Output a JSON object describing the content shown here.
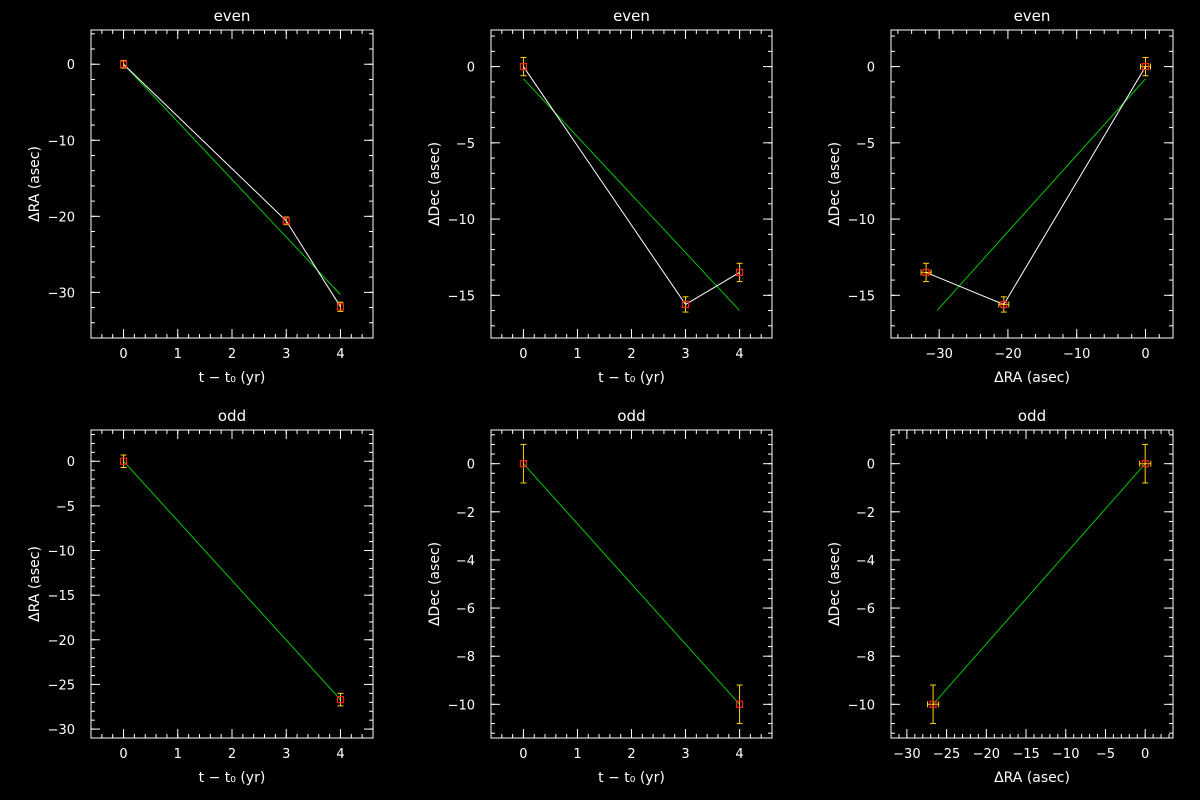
{
  "chart_data": [
    {
      "type": "line",
      "title": "even",
      "xlabel": "t − t₀ (yr)",
      "ylabel": "ΔRA (asec)",
      "xlim": [
        -0.6,
        4.6
      ],
      "ylim": [
        -36,
        4.5
      ],
      "xticks": [
        0,
        1,
        2,
        3,
        4
      ],
      "yticks": [
        0,
        -10,
        -20,
        -30
      ],
      "points": [
        {
          "x": 0,
          "y": 0,
          "yerr": 0.5,
          "xerr": 0
        },
        {
          "x": 3,
          "y": -20.6,
          "yerr": 0.5,
          "xerr": 0
        },
        {
          "x": 4,
          "y": -31.9,
          "yerr": 0.6,
          "xerr": 0
        }
      ],
      "connect": true,
      "fit": [
        [
          0,
          0
        ],
        [
          4,
          -30.3
        ]
      ],
      "colors": {
        "data_line": "#ffffff",
        "fit_line": "#00c800",
        "marker": "#ff2020",
        "error_bar": "#ffd700"
      }
    },
    {
      "type": "line",
      "title": "even",
      "xlabel": "t − t₀ (yr)",
      "ylabel": "ΔDec (asec)",
      "xlim": [
        -0.6,
        4.6
      ],
      "ylim": [
        -17.8,
        2.4
      ],
      "xticks": [
        0,
        1,
        2,
        3,
        4
      ],
      "yticks": [
        0,
        -5,
        -10,
        -15
      ],
      "points": [
        {
          "x": 0,
          "y": 0,
          "yerr": 0.6,
          "xerr": 0
        },
        {
          "x": 3,
          "y": -15.6,
          "yerr": 0.5,
          "xerr": 0
        },
        {
          "x": 4,
          "y": -13.5,
          "yerr": 0.6,
          "xerr": 0
        }
      ],
      "connect": true,
      "fit": [
        [
          0,
          -0.8
        ],
        [
          4,
          -16.0
        ]
      ],
      "colors": {
        "data_line": "#ffffff",
        "fit_line": "#00c800",
        "marker": "#ff2020",
        "error_bar": "#ffd700"
      }
    },
    {
      "type": "line",
      "title": "even",
      "xlabel": "ΔRA (asec)",
      "ylabel": "ΔDec (asec)",
      "xlim": [
        -37,
        4
      ],
      "ylim": [
        -17.8,
        2.4
      ],
      "xticks": [
        -30,
        -20,
        -10,
        0
      ],
      "yticks": [
        0,
        -5,
        -10,
        -15
      ],
      "points": [
        {
          "x": 0,
          "y": 0,
          "yerr": 0.6,
          "xerr": 0.5
        },
        {
          "x": -20.6,
          "y": -15.6,
          "yerr": 0.5,
          "xerr": 0.5
        },
        {
          "x": -31.9,
          "y": -13.5,
          "yerr": 0.6,
          "xerr": 0.6
        }
      ],
      "connect": true,
      "fit": [
        [
          0,
          -0.8
        ],
        [
          -30.3,
          -16.0
        ]
      ],
      "colors": {
        "data_line": "#ffffff",
        "fit_line": "#00c800",
        "marker": "#ff2020",
        "error_bar": "#ffd700"
      }
    },
    {
      "type": "line",
      "title": "odd",
      "xlabel": "t − t₀ (yr)",
      "ylabel": "ΔRA (asec)",
      "xlim": [
        -0.6,
        4.6
      ],
      "ylim": [
        -31,
        3.5
      ],
      "xticks": [
        0,
        1,
        2,
        3,
        4
      ],
      "yticks": [
        0,
        -5,
        -10,
        -15,
        -20,
        -25,
        -30
      ],
      "points": [
        {
          "x": 0,
          "y": 0,
          "yerr": 0.7,
          "xerr": 0
        },
        {
          "x": 4,
          "y": -26.7,
          "yerr": 0.7,
          "xerr": 0
        }
      ],
      "connect": false,
      "fit": [
        [
          0,
          0
        ],
        [
          4,
          -26.7
        ]
      ],
      "colors": {
        "data_line": "#ffffff",
        "fit_line": "#00c800",
        "marker": "#ff2020",
        "error_bar": "#ffd700"
      }
    },
    {
      "type": "line",
      "title": "odd",
      "xlabel": "t − t₀ (yr)",
      "ylabel": "ΔDec (asec)",
      "xlim": [
        -0.6,
        4.6
      ],
      "ylim": [
        -11.4,
        1.4
      ],
      "xticks": [
        0,
        1,
        2,
        3,
        4
      ],
      "yticks": [
        0,
        -2,
        -4,
        -6,
        -8,
        -10
      ],
      "points": [
        {
          "x": 0,
          "y": 0,
          "yerr": 0.8,
          "xerr": 0
        },
        {
          "x": 4,
          "y": -10.0,
          "yerr": 0.8,
          "xerr": 0
        }
      ],
      "connect": false,
      "fit": [
        [
          0,
          0
        ],
        [
          4,
          -10.0
        ]
      ],
      "colors": {
        "data_line": "#ffffff",
        "fit_line": "#00c800",
        "marker": "#ff2020",
        "error_bar": "#ffd700"
      }
    },
    {
      "type": "line",
      "title": "odd",
      "xlabel": "ΔRA (asec)",
      "ylabel": "ΔDec (asec)",
      "xlim": [
        -32,
        3.5
      ],
      "ylim": [
        -11.4,
        1.4
      ],
      "xticks": [
        -30,
        -25,
        -20,
        -15,
        -10,
        -5,
        0
      ],
      "yticks": [
        0,
        -2,
        -4,
        -6,
        -8,
        -10
      ],
      "points": [
        {
          "x": 0,
          "y": 0,
          "yerr": 0.8,
          "xerr": 0.7
        },
        {
          "x": -26.7,
          "y": -10.0,
          "yerr": 0.8,
          "xerr": 0.7
        }
      ],
      "connect": false,
      "fit": [
        [
          0,
          0
        ],
        [
          -26.7,
          -10.0
        ]
      ],
      "colors": {
        "data_line": "#ffffff",
        "fit_line": "#00c800",
        "marker": "#ff2020",
        "error_bar": "#ffd700"
      }
    }
  ]
}
